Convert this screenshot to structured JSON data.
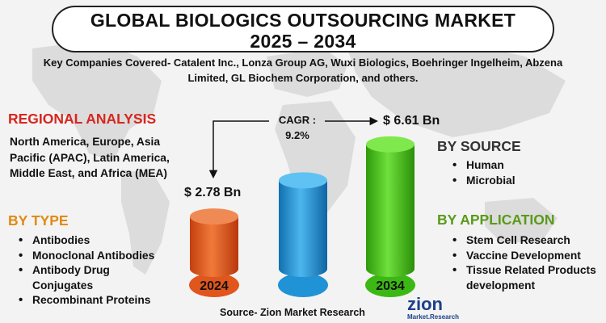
{
  "title": {
    "line1": "GLOBAL BIOLOGICS OUTSOURCING MARKET",
    "line2": "2025 – 2034"
  },
  "companies_text": "Key Companies Covered- Catalent Inc., Lonza Group AG, Wuxi Biologics, Boehringer Ingelheim, Abzena Limited, GL Biochem Corporation, and others.",
  "regional": {
    "heading": "REGIONAL ANALYSIS",
    "text": "North America, Europe, Asia Pacific (APAC), Latin America, Middle East, and Africa (MEA)"
  },
  "by_type": {
    "heading": "BY TYPE",
    "items": [
      "Antibodies",
      "Monoclonal Antibodies",
      "Antibody Drug Conjugates",
      "Recombinant Proteins"
    ]
  },
  "by_source": {
    "heading": "BY SOURCE",
    "items": [
      "Human",
      "Microbial"
    ]
  },
  "by_application": {
    "heading": "BY APPLICATION",
    "items": [
      "Stem Cell Research",
      "Vaccine Development",
      "Tissue Related Products development"
    ]
  },
  "source_text": "Source- Zion Market Research",
  "logo": {
    "name": "zion",
    "tagline": "Market.Research"
  },
  "colors": {
    "bar_2024": "#e0561c",
    "bar_mid": "#1f93d6",
    "bar_2034": "#3cb814",
    "accent_red": "#d7261e",
    "accent_green": "#5a9a1a",
    "accent_orange": "#e08a12"
  },
  "chart_data": {
    "type": "bar",
    "categories": [
      "2024",
      "",
      "2034"
    ],
    "values": [
      2.78,
      4.7,
      6.61
    ],
    "value_labels": [
      "$ 2.78 Bn",
      "",
      "$ 6.61 Bn"
    ],
    "cagr_label": "CAGR :",
    "cagr_value": "9.2%",
    "unit": "USD Bn",
    "ylim": [
      0,
      7.2
    ]
  }
}
